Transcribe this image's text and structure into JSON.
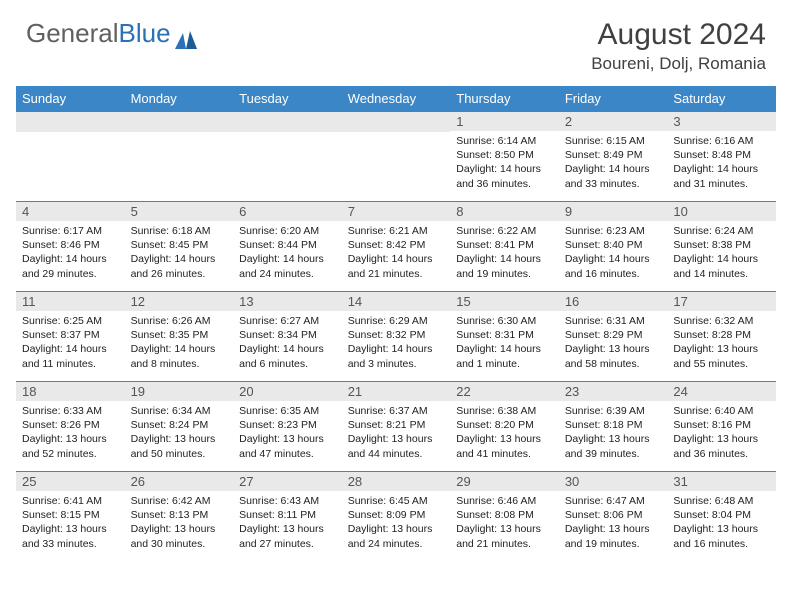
{
  "brand": {
    "part1": "General",
    "part2": "Blue"
  },
  "title": "August 2024",
  "location": "Boureni, Dolj, Romania",
  "colors": {
    "header_bg": "#3b86c6",
    "header_text": "#ffffff",
    "daynum_bg": "#e9e9e9",
    "daynum_text": "#555555",
    "border": "#3b86c6",
    "brand_gray": "#606060",
    "brand_blue": "#2a71b8"
  },
  "weekdays": [
    "Sunday",
    "Monday",
    "Tuesday",
    "Wednesday",
    "Thursday",
    "Friday",
    "Saturday"
  ],
  "weeks": [
    [
      {
        "n": "",
        "sr": "",
        "ss": "",
        "dl": ""
      },
      {
        "n": "",
        "sr": "",
        "ss": "",
        "dl": ""
      },
      {
        "n": "",
        "sr": "",
        "ss": "",
        "dl": ""
      },
      {
        "n": "",
        "sr": "",
        "ss": "",
        "dl": ""
      },
      {
        "n": "1",
        "sr": "Sunrise: 6:14 AM",
        "ss": "Sunset: 8:50 PM",
        "dl": "Daylight: 14 hours and 36 minutes."
      },
      {
        "n": "2",
        "sr": "Sunrise: 6:15 AM",
        "ss": "Sunset: 8:49 PM",
        "dl": "Daylight: 14 hours and 33 minutes."
      },
      {
        "n": "3",
        "sr": "Sunrise: 6:16 AM",
        "ss": "Sunset: 8:48 PM",
        "dl": "Daylight: 14 hours and 31 minutes."
      }
    ],
    [
      {
        "n": "4",
        "sr": "Sunrise: 6:17 AM",
        "ss": "Sunset: 8:46 PM",
        "dl": "Daylight: 14 hours and 29 minutes."
      },
      {
        "n": "5",
        "sr": "Sunrise: 6:18 AM",
        "ss": "Sunset: 8:45 PM",
        "dl": "Daylight: 14 hours and 26 minutes."
      },
      {
        "n": "6",
        "sr": "Sunrise: 6:20 AM",
        "ss": "Sunset: 8:44 PM",
        "dl": "Daylight: 14 hours and 24 minutes."
      },
      {
        "n": "7",
        "sr": "Sunrise: 6:21 AM",
        "ss": "Sunset: 8:42 PM",
        "dl": "Daylight: 14 hours and 21 minutes."
      },
      {
        "n": "8",
        "sr": "Sunrise: 6:22 AM",
        "ss": "Sunset: 8:41 PM",
        "dl": "Daylight: 14 hours and 19 minutes."
      },
      {
        "n": "9",
        "sr": "Sunrise: 6:23 AM",
        "ss": "Sunset: 8:40 PM",
        "dl": "Daylight: 14 hours and 16 minutes."
      },
      {
        "n": "10",
        "sr": "Sunrise: 6:24 AM",
        "ss": "Sunset: 8:38 PM",
        "dl": "Daylight: 14 hours and 14 minutes."
      }
    ],
    [
      {
        "n": "11",
        "sr": "Sunrise: 6:25 AM",
        "ss": "Sunset: 8:37 PM",
        "dl": "Daylight: 14 hours and 11 minutes."
      },
      {
        "n": "12",
        "sr": "Sunrise: 6:26 AM",
        "ss": "Sunset: 8:35 PM",
        "dl": "Daylight: 14 hours and 8 minutes."
      },
      {
        "n": "13",
        "sr": "Sunrise: 6:27 AM",
        "ss": "Sunset: 8:34 PM",
        "dl": "Daylight: 14 hours and 6 minutes."
      },
      {
        "n": "14",
        "sr": "Sunrise: 6:29 AM",
        "ss": "Sunset: 8:32 PM",
        "dl": "Daylight: 14 hours and 3 minutes."
      },
      {
        "n": "15",
        "sr": "Sunrise: 6:30 AM",
        "ss": "Sunset: 8:31 PM",
        "dl": "Daylight: 14 hours and 1 minute."
      },
      {
        "n": "16",
        "sr": "Sunrise: 6:31 AM",
        "ss": "Sunset: 8:29 PM",
        "dl": "Daylight: 13 hours and 58 minutes."
      },
      {
        "n": "17",
        "sr": "Sunrise: 6:32 AM",
        "ss": "Sunset: 8:28 PM",
        "dl": "Daylight: 13 hours and 55 minutes."
      }
    ],
    [
      {
        "n": "18",
        "sr": "Sunrise: 6:33 AM",
        "ss": "Sunset: 8:26 PM",
        "dl": "Daylight: 13 hours and 52 minutes."
      },
      {
        "n": "19",
        "sr": "Sunrise: 6:34 AM",
        "ss": "Sunset: 8:24 PM",
        "dl": "Daylight: 13 hours and 50 minutes."
      },
      {
        "n": "20",
        "sr": "Sunrise: 6:35 AM",
        "ss": "Sunset: 8:23 PM",
        "dl": "Daylight: 13 hours and 47 minutes."
      },
      {
        "n": "21",
        "sr": "Sunrise: 6:37 AM",
        "ss": "Sunset: 8:21 PM",
        "dl": "Daylight: 13 hours and 44 minutes."
      },
      {
        "n": "22",
        "sr": "Sunrise: 6:38 AM",
        "ss": "Sunset: 8:20 PM",
        "dl": "Daylight: 13 hours and 41 minutes."
      },
      {
        "n": "23",
        "sr": "Sunrise: 6:39 AM",
        "ss": "Sunset: 8:18 PM",
        "dl": "Daylight: 13 hours and 39 minutes."
      },
      {
        "n": "24",
        "sr": "Sunrise: 6:40 AM",
        "ss": "Sunset: 8:16 PM",
        "dl": "Daylight: 13 hours and 36 minutes."
      }
    ],
    [
      {
        "n": "25",
        "sr": "Sunrise: 6:41 AM",
        "ss": "Sunset: 8:15 PM",
        "dl": "Daylight: 13 hours and 33 minutes."
      },
      {
        "n": "26",
        "sr": "Sunrise: 6:42 AM",
        "ss": "Sunset: 8:13 PM",
        "dl": "Daylight: 13 hours and 30 minutes."
      },
      {
        "n": "27",
        "sr": "Sunrise: 6:43 AM",
        "ss": "Sunset: 8:11 PM",
        "dl": "Daylight: 13 hours and 27 minutes."
      },
      {
        "n": "28",
        "sr": "Sunrise: 6:45 AM",
        "ss": "Sunset: 8:09 PM",
        "dl": "Daylight: 13 hours and 24 minutes."
      },
      {
        "n": "29",
        "sr": "Sunrise: 6:46 AM",
        "ss": "Sunset: 8:08 PM",
        "dl": "Daylight: 13 hours and 21 minutes."
      },
      {
        "n": "30",
        "sr": "Sunrise: 6:47 AM",
        "ss": "Sunset: 8:06 PM",
        "dl": "Daylight: 13 hours and 19 minutes."
      },
      {
        "n": "31",
        "sr": "Sunrise: 6:48 AM",
        "ss": "Sunset: 8:04 PM",
        "dl": "Daylight: 13 hours and 16 minutes."
      }
    ]
  ]
}
